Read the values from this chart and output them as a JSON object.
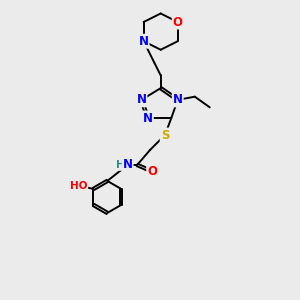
{
  "bg_color": "#ebebeb",
  "atom_colors": {
    "C": "#000000",
    "N": "#0000ff",
    "O": "#ff0000",
    "S": "#ccaa00",
    "H": "#2e8b8b",
    "HO": "#ff0000"
  },
  "bond_color": "#000000",
  "figsize": [
    3.0,
    3.0
  ],
  "dpi": 100
}
